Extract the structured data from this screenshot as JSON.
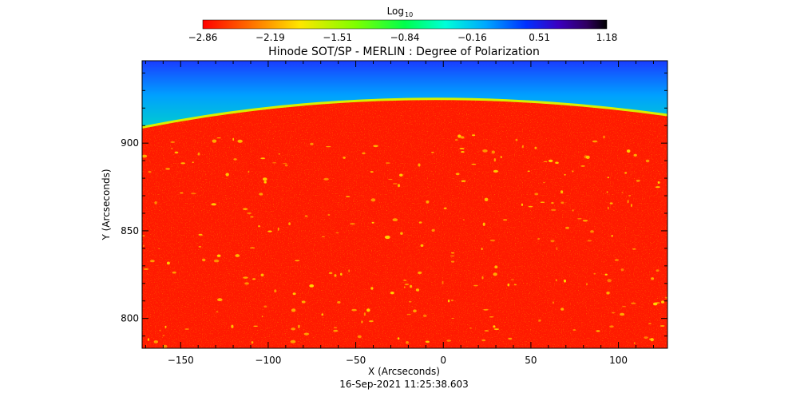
{
  "chart_data": {
    "type": "heatmap",
    "title": "Hinode SOT/SP - MERLIN : Degree of Polarization",
    "xlabel": "X (Arcseconds)",
    "ylabel": "Y (Arcseconds)",
    "subtitle": "16-Sep-2021 11:25:38.603",
    "xlim": [
      -172,
      128
    ],
    "ylim": [
      783,
      947
    ],
    "x_ticks": [
      -150,
      -100,
      -50,
      0,
      50,
      100
    ],
    "y_ticks": [
      800,
      850,
      900
    ],
    "limb": {
      "y_at_xmin": 909,
      "y_at_xmax": 916,
      "y_peak": 925,
      "x_peak": -25
    },
    "colorbar": {
      "label": "Log",
      "label_sub": "10",
      "min": -2.86,
      "max": 1.18,
      "ticks": [
        "-2.86",
        "-2.19",
        "-1.51",
        "-0.84",
        "-0.16",
        "0.51",
        "1.18"
      ]
    },
    "regions": [
      {
        "name": "disk",
        "log_value": -2.86
      },
      {
        "name": "off-limb",
        "log_value": -0.84
      },
      {
        "name": "far off-limb",
        "log_value": -0.16
      }
    ],
    "colors": {
      "disk": "#ff1a00",
      "limb_edge": "#d8f000",
      "off_limb": "#20e020",
      "far_off_limb": "#1f60ff",
      "active_patches": "#ffe000"
    }
  }
}
